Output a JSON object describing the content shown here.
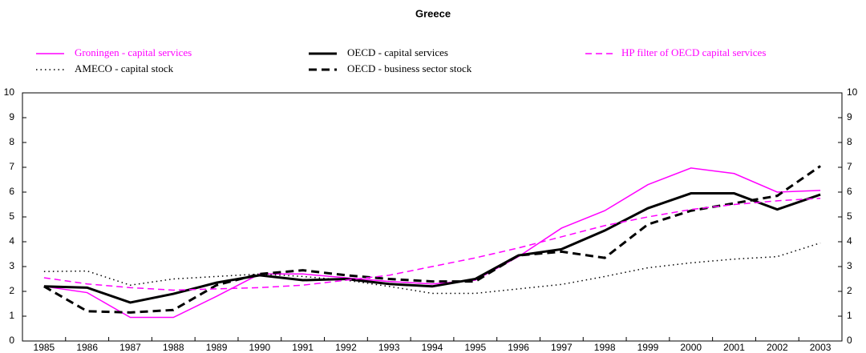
{
  "chart_data": {
    "type": "line",
    "title": "Greece",
    "categories": [
      "1985",
      "1986",
      "1987",
      "1988",
      "1989",
      "1990",
      "1991",
      "1992",
      "1993",
      "1994",
      "1995",
      "1996",
      "1997",
      "1998",
      "1999",
      "2000",
      "2001",
      "2002",
      "2003"
    ],
    "series": [
      {
        "name": "Groningen - capital services",
        "color": "#ff00ff",
        "dash": "solid",
        "width": 1.5,
        "values": [
          2.2,
          1.95,
          0.95,
          0.95,
          1.8,
          2.7,
          2.7,
          2.55,
          2.4,
          2.3,
          2.45,
          3.4,
          4.55,
          5.25,
          6.3,
          6.97,
          6.75,
          6.0,
          6.07
        ]
      },
      {
        "name": "AMECO - capital stock",
        "color": "#000000",
        "dash": "dotted",
        "width": 1.5,
        "values": [
          2.8,
          2.82,
          2.25,
          2.5,
          2.6,
          2.7,
          2.6,
          2.45,
          2.2,
          1.92,
          1.92,
          2.1,
          2.28,
          2.6,
          2.95,
          3.15,
          3.3,
          3.4,
          3.95
        ]
      },
      {
        "name": "OECD - capital services",
        "color": "#000000",
        "dash": "solid",
        "width": 3,
        "values": [
          2.2,
          2.15,
          1.55,
          1.9,
          2.35,
          2.65,
          2.45,
          2.5,
          2.3,
          2.2,
          2.5,
          3.45,
          3.7,
          4.45,
          5.35,
          5.95,
          5.95,
          5.3,
          5.9
        ]
      },
      {
        "name": "OECD - business sector stock",
        "color": "#000000",
        "dash": "dashed",
        "width": 3,
        "values": [
          2.2,
          1.2,
          1.15,
          1.25,
          2.25,
          2.7,
          2.85,
          2.65,
          2.5,
          2.4,
          2.4,
          3.45,
          3.6,
          3.35,
          4.7,
          5.25,
          5.55,
          5.85,
          7.05
        ]
      },
      {
        "name": "HP filter of OECD capital services",
        "color": "#ff00ff",
        "dash": "dashed",
        "width": 1.5,
        "values": [
          2.55,
          2.3,
          2.15,
          2.05,
          2.1,
          2.15,
          2.25,
          2.45,
          2.65,
          3.0,
          3.35,
          3.75,
          4.2,
          4.65,
          5.0,
          5.3,
          5.5,
          5.65,
          5.75
        ]
      }
    ],
    "ylim": [
      0,
      10
    ],
    "yticks": [
      0,
      1,
      2,
      3,
      4,
      5,
      6,
      7,
      8,
      9,
      10
    ],
    "y2lim": [
      0,
      10
    ],
    "y2ticks": [
      0,
      1,
      2,
      3,
      4,
      5,
      6,
      7,
      8,
      9,
      10
    ],
    "grid": false,
    "legend": "top"
  }
}
